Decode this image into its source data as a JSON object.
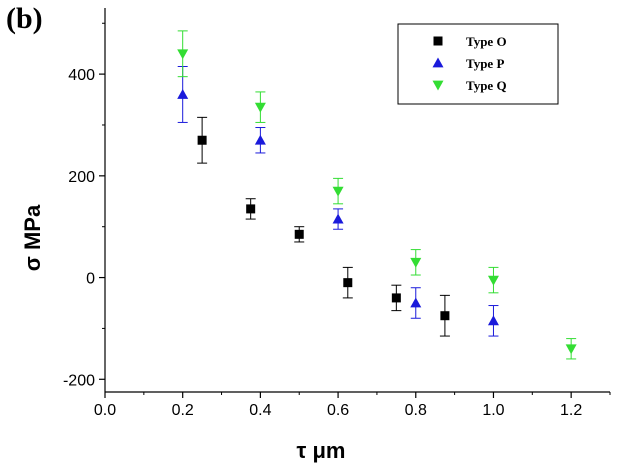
{
  "panel_label": "(b)",
  "colors": {
    "type_o": "#000000",
    "type_p": "#1a1adb",
    "type_q": "#33dd33"
  },
  "chart_data": {
    "type": "scatter",
    "xlabel": "τ μm",
    "ylabel": "σ MPa",
    "xlim": [
      0.0,
      1.3
    ],
    "ylim": [
      -225,
      530
    ],
    "xticks": [
      0.0,
      0.2,
      0.4,
      0.6,
      0.8,
      1.0,
      1.2
    ],
    "xtick_labels": [
      "0.0",
      "0.2",
      "0.4",
      "0.6",
      "0.8",
      "1.0",
      "1.2"
    ],
    "yticks": [
      -200,
      0,
      200,
      400
    ],
    "ytick_labels": [
      "-200",
      "0",
      "200",
      "400"
    ],
    "grid": false,
    "legend_position": "top-right",
    "series": [
      {
        "name": "Type O",
        "marker": "square",
        "color": "#000000",
        "points": [
          {
            "x": 0.25,
            "y": 270,
            "err": 45
          },
          {
            "x": 0.375,
            "y": 135,
            "err": 20
          },
          {
            "x": 0.5,
            "y": 85,
            "err": 15
          },
          {
            "x": 0.625,
            "y": -10,
            "err": 30
          },
          {
            "x": 0.75,
            "y": -40,
            "err": 25
          },
          {
            "x": 0.875,
            "y": -75,
            "err": 40
          }
        ]
      },
      {
        "name": "Type P",
        "marker": "triangle-up",
        "color": "#1a1adb",
        "points": [
          {
            "x": 0.2,
            "y": 360,
            "err": 55
          },
          {
            "x": 0.4,
            "y": 270,
            "err": 25
          },
          {
            "x": 0.6,
            "y": 115,
            "err": 20
          },
          {
            "x": 0.8,
            "y": -50,
            "err": 30
          },
          {
            "x": 1.0,
            "y": -85,
            "err": 30
          }
        ]
      },
      {
        "name": "Type Q",
        "marker": "triangle-down",
        "color": "#33dd33",
        "points": [
          {
            "x": 0.2,
            "y": 440,
            "err": 45
          },
          {
            "x": 0.4,
            "y": 335,
            "err": 30
          },
          {
            "x": 0.6,
            "y": 170,
            "err": 25
          },
          {
            "x": 0.8,
            "y": 30,
            "err": 25
          },
          {
            "x": 1.0,
            "y": -5,
            "err": 25
          },
          {
            "x": 1.2,
            "y": -140,
            "err": 20
          }
        ]
      }
    ]
  }
}
